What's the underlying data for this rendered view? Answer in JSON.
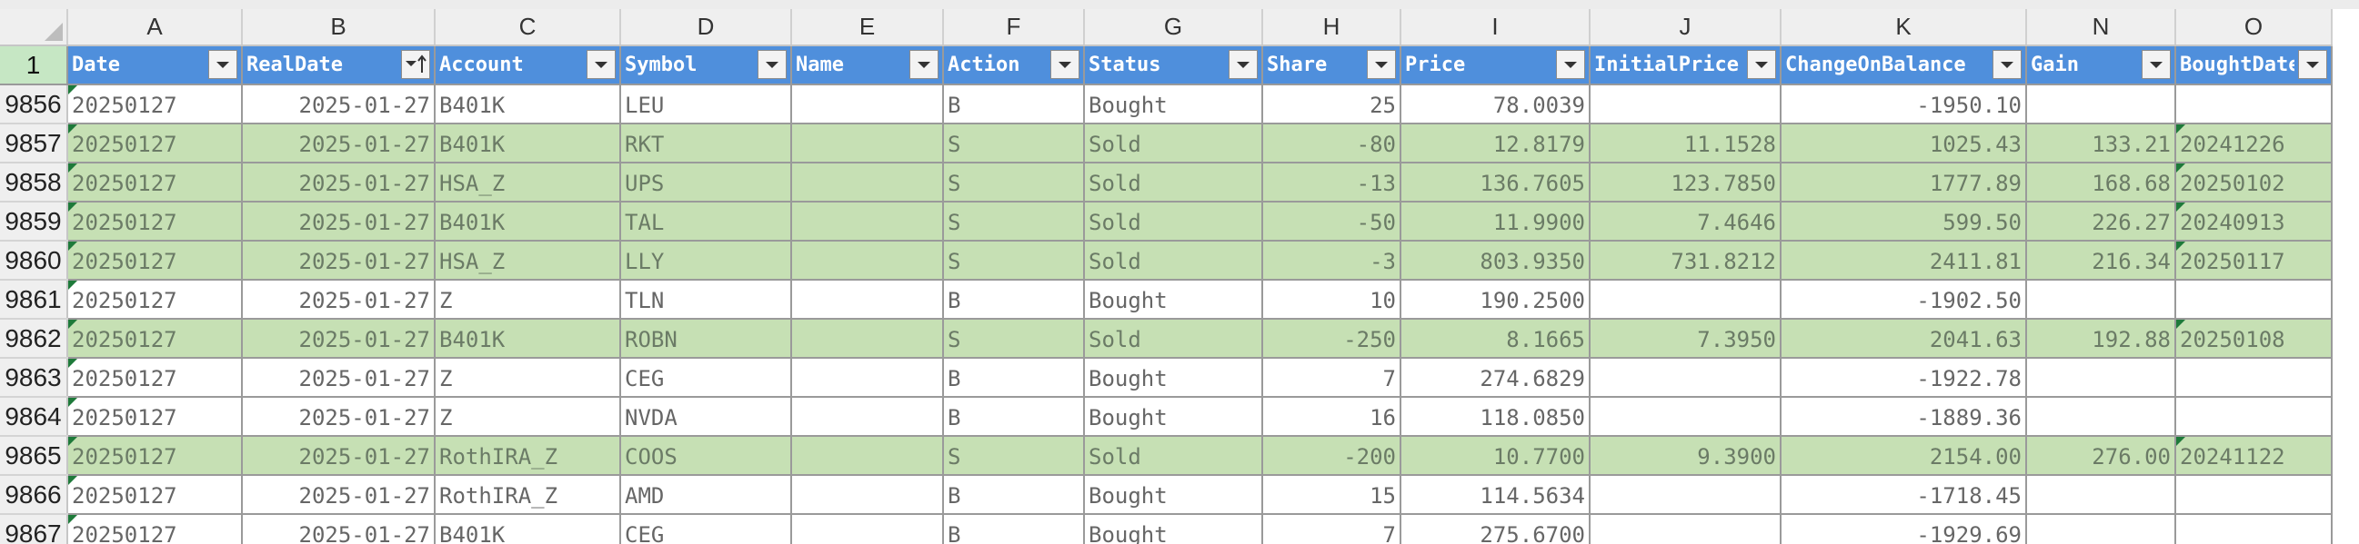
{
  "sheet": {
    "columns": [
      "A",
      "B",
      "C",
      "D",
      "E",
      "F",
      "G",
      "H",
      "I",
      "J",
      "K",
      "N",
      "O"
    ],
    "header_row_number": "1",
    "headers": [
      "Date",
      "RealDate",
      "Account",
      "Symbol",
      "Name",
      "Action",
      "Status",
      "Share",
      "Price",
      "InitialPrice",
      "ChangeOnBalance",
      "Gain",
      "BoughtDate"
    ],
    "sort_indicator_column": "RealDate",
    "colors": {
      "header_bg": "#4f8fdc",
      "sold_row_bg": "#c6e0b4",
      "bought_row_bg": "#ffffff",
      "error_flag": "#1e7a3a"
    },
    "rows": [
      {
        "num": "9856",
        "status_kind": "bought",
        "cells": [
          "20250127",
          "2025-01-27",
          "B401K",
          "LEU",
          "",
          "B",
          "Bought",
          "25",
          "78.0039",
          "",
          "-1950.10",
          "",
          ""
        ]
      },
      {
        "num": "9857",
        "status_kind": "sold",
        "cells": [
          "20250127",
          "2025-01-27",
          "B401K",
          "RKT",
          "",
          "S",
          "Sold",
          "-80",
          "12.8179",
          "11.1528",
          "1025.43",
          "133.21",
          "20241226"
        ]
      },
      {
        "num": "9858",
        "status_kind": "sold",
        "cells": [
          "20250127",
          "2025-01-27",
          "HSA_Z",
          "UPS",
          "",
          "S",
          "Sold",
          "-13",
          "136.7605",
          "123.7850",
          "1777.89",
          "168.68",
          "20250102"
        ]
      },
      {
        "num": "9859",
        "status_kind": "sold",
        "cells": [
          "20250127",
          "2025-01-27",
          "B401K",
          "TAL",
          "",
          "S",
          "Sold",
          "-50",
          "11.9900",
          "7.4646",
          "599.50",
          "226.27",
          "20240913"
        ]
      },
      {
        "num": "9860",
        "status_kind": "sold",
        "cells": [
          "20250127",
          "2025-01-27",
          "HSA_Z",
          "LLY",
          "",
          "S",
          "Sold",
          "-3",
          "803.9350",
          "731.8212",
          "2411.81",
          "216.34",
          "20250117"
        ]
      },
      {
        "num": "9861",
        "status_kind": "bought",
        "cells": [
          "20250127",
          "2025-01-27",
          "Z",
          "TLN",
          "",
          "B",
          "Bought",
          "10",
          "190.2500",
          "",
          "-1902.50",
          "",
          ""
        ]
      },
      {
        "num": "9862",
        "status_kind": "sold",
        "cells": [
          "20250127",
          "2025-01-27",
          "B401K",
          "ROBN",
          "",
          "S",
          "Sold",
          "-250",
          "8.1665",
          "7.3950",
          "2041.63",
          "192.88",
          "20250108"
        ]
      },
      {
        "num": "9863",
        "status_kind": "bought",
        "cells": [
          "20250127",
          "2025-01-27",
          "Z",
          "CEG",
          "",
          "B",
          "Bought",
          "7",
          "274.6829",
          "",
          "-1922.78",
          "",
          ""
        ]
      },
      {
        "num": "9864",
        "status_kind": "bought",
        "cells": [
          "20250127",
          "2025-01-27",
          "Z",
          "NVDA",
          "",
          "B",
          "Bought",
          "16",
          "118.0850",
          "",
          "-1889.36",
          "",
          ""
        ]
      },
      {
        "num": "9865",
        "status_kind": "sold",
        "cells": [
          "20250127",
          "2025-01-27",
          "RothIRA_Z",
          "COOS",
          "",
          "S",
          "Sold",
          "-200",
          "10.7700",
          "9.3900",
          "2154.00",
          "276.00",
          "20241122"
        ]
      },
      {
        "num": "9866",
        "status_kind": "bought",
        "cells": [
          "20250127",
          "2025-01-27",
          "RothIRA_Z",
          "AMD",
          "",
          "B",
          "Bought",
          "15",
          "114.5634",
          "",
          "-1718.45",
          "",
          ""
        ]
      },
      {
        "num": "9867",
        "status_kind": "bought",
        "cells": [
          "20250127",
          "2025-01-27",
          "B401K",
          "CEG",
          "",
          "B",
          "Bought",
          "7",
          "275.6700",
          "",
          "-1929.69",
          "",
          ""
        ]
      }
    ]
  }
}
